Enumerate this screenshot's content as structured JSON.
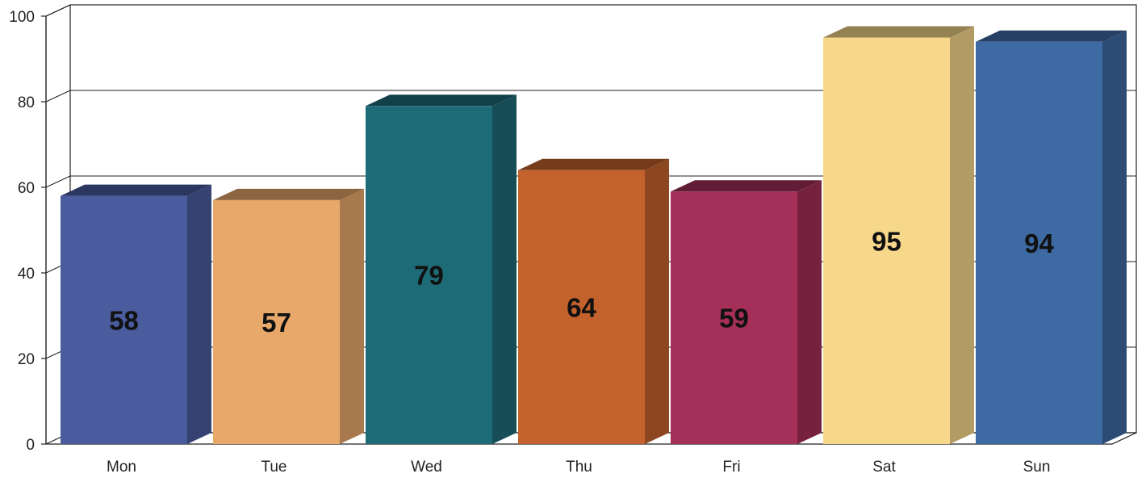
{
  "chart_data": {
    "type": "bar",
    "style": "3d",
    "categories": [
      "Mon",
      "Tue",
      "Wed",
      "Thu",
      "Fri",
      "Sat",
      "Sun"
    ],
    "values": [
      58,
      57,
      79,
      64,
      59,
      95,
      94
    ],
    "colors": [
      "#4a5b9e",
      "#e8a86a",
      "#1e6b78",
      "#c4622d",
      "#a42f58",
      "#f7d88a",
      "#3d6aa3"
    ],
    "ylim": [
      0,
      100
    ],
    "yticks": [
      0,
      20,
      40,
      60,
      80,
      100
    ],
    "grid": true,
    "data_labels": true,
    "legend": "none"
  }
}
